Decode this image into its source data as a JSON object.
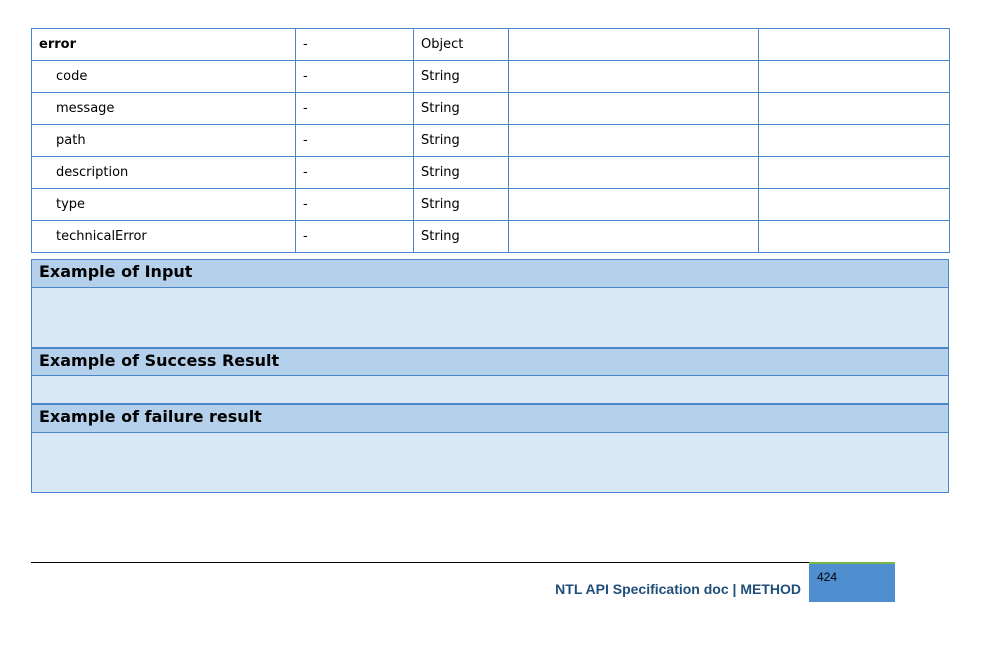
{
  "rows": [
    {
      "name": "error",
      "req": "-",
      "type": "Object",
      "bold": true
    },
    {
      "name": "code",
      "req": "-",
      "type": "String"
    },
    {
      "name": "message",
      "req": "-",
      "type": "String"
    },
    {
      "name": "path",
      "req": "-",
      "type": "String"
    },
    {
      "name": "description",
      "req": "-",
      "type": "String"
    },
    {
      "name": "type",
      "req": "-",
      "type": "String"
    },
    {
      "name": "technicalError",
      "req": "-",
      "type": "String"
    }
  ],
  "sections": {
    "input": "Example of Input",
    "success": "Example of Success Result",
    "failure": "Example of failure result"
  },
  "footer": {
    "title": "NTL API Specification doc | METHOD",
    "page": "424"
  }
}
